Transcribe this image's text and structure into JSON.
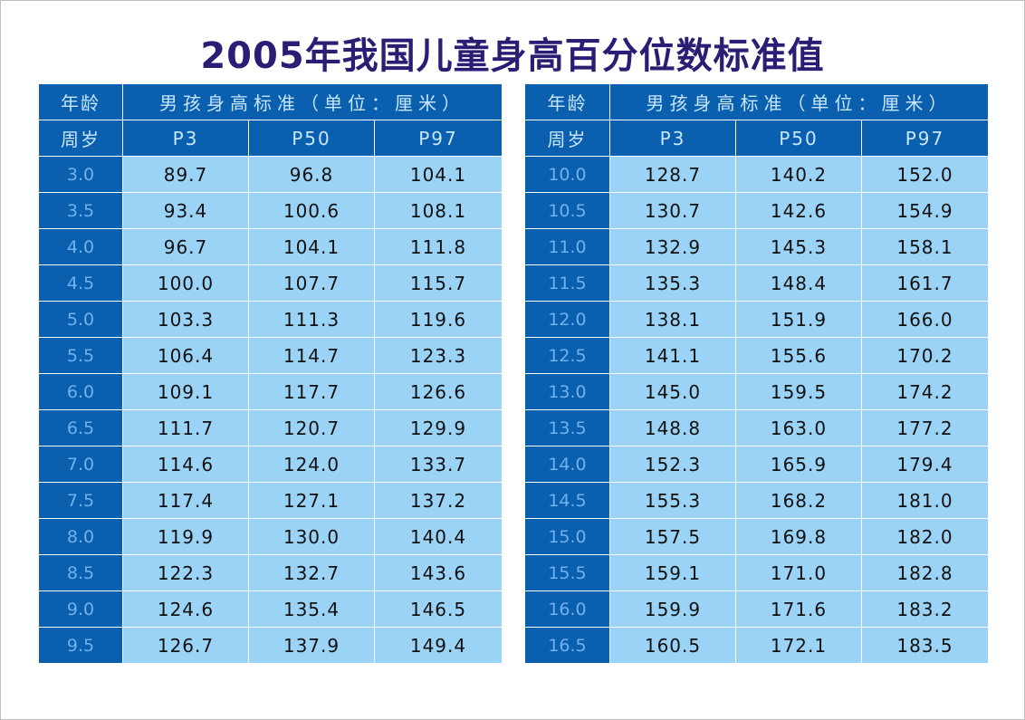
{
  "title": "2005年我国儿童身高百分位数标准值",
  "header": {
    "age_label_top": "年龄",
    "age_label_bottom": "周岁",
    "group_label": "男孩身高标准（单位：厘米）",
    "columns": [
      "P3",
      "P50",
      "P97"
    ]
  },
  "colors": {
    "title": "#2b1d73",
    "header_bg": "#0a5faf",
    "cell_bg": "#9bd3f6"
  },
  "tables": [
    {
      "rows": [
        {
          "age": "3.0",
          "p3": "89.7",
          "p50": "96.8",
          "p97": "104.1"
        },
        {
          "age": "3.5",
          "p3": "93.4",
          "p50": "100.6",
          "p97": "108.1"
        },
        {
          "age": "4.0",
          "p3": "96.7",
          "p50": "104.1",
          "p97": "111.8"
        },
        {
          "age": "4.5",
          "p3": "100.0",
          "p50": "107.7",
          "p97": "115.7"
        },
        {
          "age": "5.0",
          "p3": "103.3",
          "p50": "111.3",
          "p97": "119.6"
        },
        {
          "age": "5.5",
          "p3": "106.4",
          "p50": "114.7",
          "p97": "123.3"
        },
        {
          "age": "6.0",
          "p3": "109.1",
          "p50": "117.7",
          "p97": "126.6"
        },
        {
          "age": "6.5",
          "p3": "111.7",
          "p50": "120.7",
          "p97": "129.9"
        },
        {
          "age": "7.0",
          "p3": "114.6",
          "p50": "124.0",
          "p97": "133.7"
        },
        {
          "age": "7.5",
          "p3": "117.4",
          "p50": "127.1",
          "p97": "137.2"
        },
        {
          "age": "8.0",
          "p3": "119.9",
          "p50": "130.0",
          "p97": "140.4"
        },
        {
          "age": "8.5",
          "p3": "122.3",
          "p50": "132.7",
          "p97": "143.6"
        },
        {
          "age": "9.0",
          "p3": "124.6",
          "p50": "135.4",
          "p97": "146.5"
        },
        {
          "age": "9.5",
          "p3": "126.7",
          "p50": "137.9",
          "p97": "149.4"
        }
      ]
    },
    {
      "rows": [
        {
          "age": "10.0",
          "p3": "128.7",
          "p50": "140.2",
          "p97": "152.0"
        },
        {
          "age": "10.5",
          "p3": "130.7",
          "p50": "142.6",
          "p97": "154.9"
        },
        {
          "age": "11.0",
          "p3": "132.9",
          "p50": "145.3",
          "p97": "158.1"
        },
        {
          "age": "11.5",
          "p3": "135.3",
          "p50": "148.4",
          "p97": "161.7"
        },
        {
          "age": "12.0",
          "p3": "138.1",
          "p50": "151.9",
          "p97": "166.0"
        },
        {
          "age": "12.5",
          "p3": "141.1",
          "p50": "155.6",
          "p97": "170.2"
        },
        {
          "age": "13.0",
          "p3": "145.0",
          "p50": "159.5",
          "p97": "174.2"
        },
        {
          "age": "13.5",
          "p3": "148.8",
          "p50": "163.0",
          "p97": "177.2"
        },
        {
          "age": "14.0",
          "p3": "152.3",
          "p50": "165.9",
          "p97": "179.4"
        },
        {
          "age": "14.5",
          "p3": "155.3",
          "p50": "168.2",
          "p97": "181.0"
        },
        {
          "age": "15.0",
          "p3": "157.5",
          "p50": "169.8",
          "p97": "182.0"
        },
        {
          "age": "15.5",
          "p3": "159.1",
          "p50": "171.0",
          "p97": "182.8"
        },
        {
          "age": "16.0",
          "p3": "159.9",
          "p50": "171.6",
          "p97": "183.2"
        },
        {
          "age": "16.5",
          "p3": "160.5",
          "p50": "172.1",
          "p97": "183.5"
        }
      ]
    }
  ]
}
